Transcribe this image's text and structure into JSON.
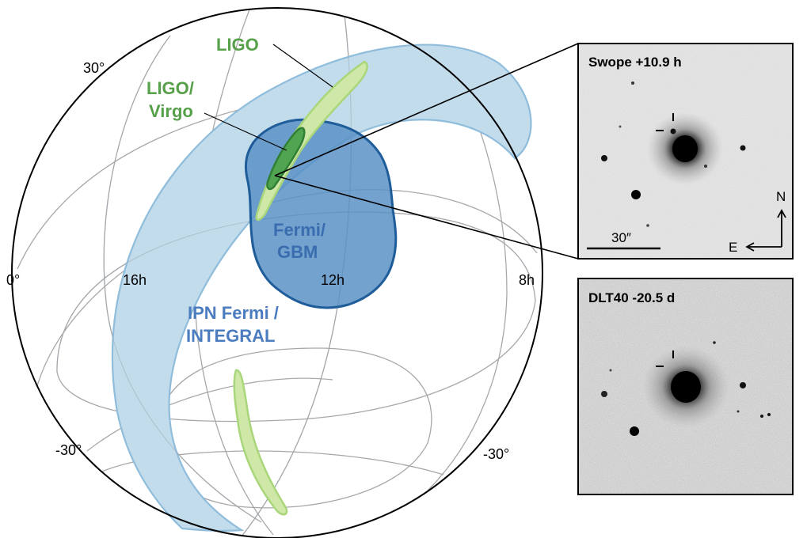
{
  "globe": {
    "dec_labels": [
      "30°",
      "0°",
      "-30°",
      "-30°"
    ],
    "ra_labels": [
      "16h",
      "12h",
      "8h"
    ]
  },
  "regions": {
    "ligo_label": "LIGO",
    "ligo_virgo_label_line1": "LIGO/",
    "ligo_virgo_label_line2": "Virgo",
    "fermi_label_line1": "Fermi/",
    "fermi_label_line2": "GBM",
    "ipn_label_line1": "IPN Fermi /",
    "ipn_label_line2": "INTEGRAL"
  },
  "panels": {
    "top": {
      "title": "Swope +10.9 h",
      "scale_label": "30″",
      "compass_n": "N",
      "compass_e": "E"
    },
    "bottom": {
      "title": "DLT40 -20.5 d"
    }
  },
  "colors": {
    "ligo_fill": "#cfe8a8",
    "ligo_stroke": "#a9d67a",
    "ligo_virgo_fill": "#52a550",
    "ligo_virgo_stroke": "#2f7f35",
    "fermi_fill": "#5b92c6",
    "fermi_stroke": "#1f5d9a",
    "ipn_fill": "#c3dcec",
    "ipn_stroke": "#8fbddb",
    "green_text": "#57a04a",
    "blue_text": "#3a6db0"
  }
}
